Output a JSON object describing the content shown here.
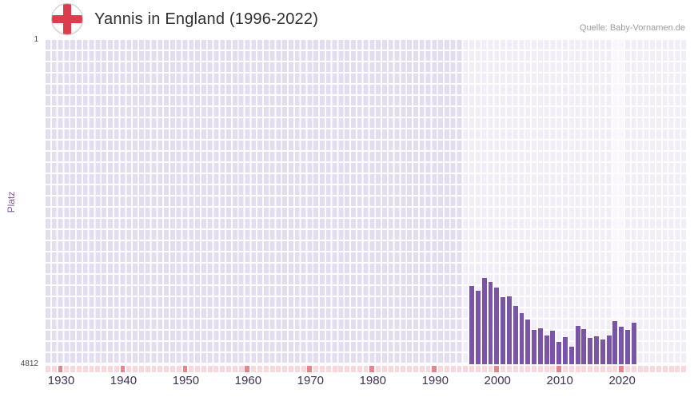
{
  "header": {
    "title": "Yannis in England (1996-2022)",
    "source": "Quelle: Baby-Vornamen.de"
  },
  "chart_data": {
    "type": "bar",
    "title": "Yannis in England (1996-2022)",
    "ylabel": "Platz",
    "y_axis": {
      "top_label": "1",
      "bottom_label": "4812",
      "best_rank": 1,
      "worst_rank": 4812,
      "inverted": true
    },
    "x_axis": {
      "start_year": 1928,
      "end_year": 2030,
      "tick_years": [
        1930,
        1940,
        1950,
        1960,
        1970,
        1980,
        1990,
        2000,
        2010,
        2020
      ]
    },
    "highlight_range": {
      "from": 1995,
      "to": 2030
    },
    "highlight_column": {
      "from": 2019,
      "to": 2021
    },
    "series": [
      {
        "name": "Platz",
        "years": [
          1996,
          1997,
          1998,
          1999,
          2000,
          2001,
          2002,
          2003,
          2004,
          2005,
          2006,
          2007,
          2008,
          2009,
          2010,
          2011,
          2012,
          2013,
          2014,
          2015,
          2016,
          2017,
          2018,
          2019,
          2020,
          2021,
          2022
        ],
        "ranks": [
          3650,
          3720,
          3530,
          3590,
          3680,
          3820,
          3800,
          3950,
          4050,
          4150,
          4300,
          4280,
          4380,
          4320,
          4480,
          4410,
          4550,
          4240,
          4290,
          4420,
          4400,
          4440,
          4390,
          4170,
          4260,
          4300,
          4190
        ]
      }
    ],
    "colors": {
      "bar": "#7a55a5",
      "plot_background": "#e3ddf0",
      "grid_line": "#ffffff",
      "tick_square": "#f8d8dd",
      "tick_square_decade": "#e9838e",
      "flag_red": "#dc3c4c",
      "axis_label": "#7b5aa6",
      "year_label": "#3e3356"
    }
  }
}
